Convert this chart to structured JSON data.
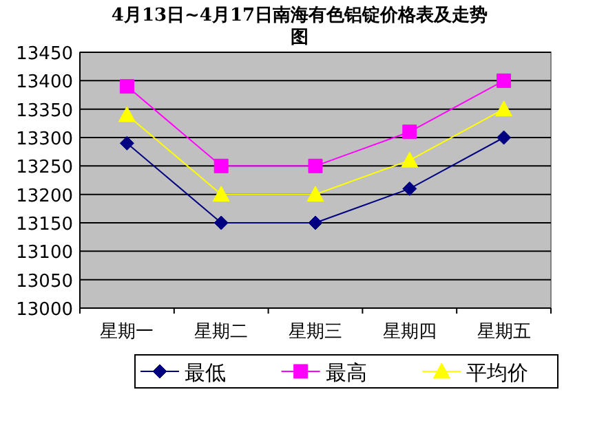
{
  "chart_data": {
    "type": "line",
    "title": "4月13日~4月17日南海有色铝锭价格表及走势图",
    "categories": [
      "星期一",
      "星期二",
      "星期三",
      "星期四",
      "星期五"
    ],
    "series": [
      {
        "name": "最低",
        "color": "#000080",
        "marker": "diamond",
        "values": [
          13290,
          13150,
          13150,
          13210,
          13300
        ]
      },
      {
        "name": "最高",
        "color": "#ff00ff",
        "marker": "square",
        "values": [
          13390,
          13250,
          13250,
          13310,
          13400
        ]
      },
      {
        "name": "平均价",
        "color": "#ffff00",
        "marker": "triangle",
        "values": [
          13340,
          13200,
          13200,
          13260,
          13350
        ]
      }
    ],
    "ylim": [
      13000,
      13450
    ],
    "yticks": [
      13000,
      13050,
      13100,
      13150,
      13200,
      13250,
      13300,
      13350,
      13400,
      13450
    ],
    "grid": "y",
    "legend": "bottom"
  }
}
